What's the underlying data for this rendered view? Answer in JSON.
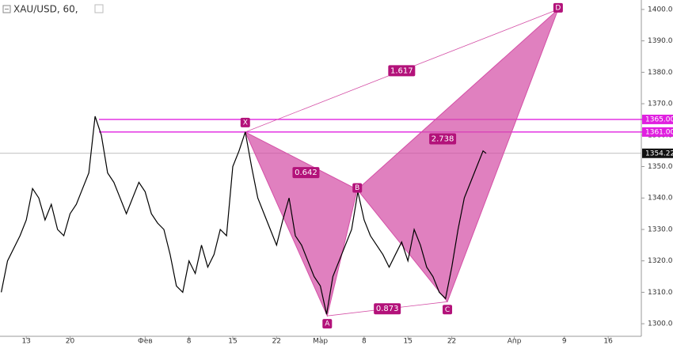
{
  "chart_data": {
    "type": "line",
    "title": "XAU/USD, 60,",
    "color": "#000000",
    "x": [
      9,
      10,
      12,
      13,
      14,
      15,
      16,
      17,
      18,
      19,
      20,
      21,
      22,
      23,
      24,
      25,
      26,
      27,
      28,
      29,
      30,
      31,
      32,
      33,
      34,
      35,
      36,
      37,
      38,
      39,
      40,
      41,
      42,
      43,
      44,
      45,
      46,
      47,
      48,
      49,
      50,
      51,
      52,
      53,
      54,
      55,
      56,
      57,
      58,
      59,
      60,
      61,
      62,
      63,
      64,
      65,
      66,
      67,
      68,
      69,
      70,
      71,
      72,
      73,
      74,
      75,
      76,
      77,
      78,
      79,
      80,
      81,
      82,
      83,
      84,
      85,
      86,
      86.5
    ],
    "values": [
      1310,
      1320,
      1328,
      1333,
      1343,
      1340,
      1333,
      1338,
      1330,
      1328,
      1335,
      1338,
      1343,
      1348,
      1366,
      1360,
      1348,
      1345,
      1340,
      1335,
      1340,
      1345,
      1342,
      1335,
      1332,
      1330,
      1322,
      1312,
      1310,
      1320,
      1316,
      1325,
      1318,
      1322,
      1330,
      1328,
      1350,
      1355,
      1361,
      1350,
      1340,
      1335,
      1330,
      1325,
      1333,
      1340,
      1328,
      1325,
      1320,
      1315,
      1312,
      1303,
      1315,
      1320,
      1325,
      1330,
      1342,
      1333,
      1328,
      1325,
      1322,
      1318,
      1322,
      1326,
      1320,
      1330,
      1325,
      1318,
      1315,
      1310,
      1308,
      1318,
      1330,
      1340,
      1345,
      1350,
      1355,
      1354.22
    ],
    "xlim": [
      8.8,
      111.3
    ],
    "ylim": [
      1296,
      1403
    ],
    "xticks": [
      {
        "value": 13,
        "label": "13"
      },
      {
        "value": 20,
        "label": "20"
      },
      {
        "value": 32,
        "label": "Фев"
      },
      {
        "value": 39,
        "label": "8"
      },
      {
        "value": 46,
        "label": "15"
      },
      {
        "value": 53,
        "label": "22"
      },
      {
        "value": 60,
        "label": "Мар"
      },
      {
        "value": 67,
        "label": "8"
      },
      {
        "value": 74,
        "label": "15"
      },
      {
        "value": 81,
        "label": "22"
      },
      {
        "value": 91,
        "label": "Апр"
      },
      {
        "value": 99,
        "label": "9"
      },
      {
        "value": 106,
        "label": "16"
      }
    ],
    "yticks": [
      {
        "value": 1300,
        "label": "1300.00"
      },
      {
        "value": 1310,
        "label": "1310.00"
      },
      {
        "value": 1320,
        "label": "1320.00"
      },
      {
        "value": 1330,
        "label": "1330.00"
      },
      {
        "value": 1340,
        "label": "1340.00"
      },
      {
        "value": 1350,
        "label": "1350.00"
      },
      {
        "value": 1360,
        "label": "1360.00"
      },
      {
        "value": 1370,
        "label": "1370.00"
      },
      {
        "value": 1380,
        "label": "1380.00"
      },
      {
        "value": 1390,
        "label": "1390.00"
      },
      {
        "value": 1400,
        "label": "1400.00"
      }
    ],
    "levels": [
      {
        "value": 1365,
        "label": "1365.00"
      },
      {
        "value": 1361,
        "label": "1361.00"
      }
    ],
    "last_price": {
      "value": 1354.22,
      "label": "1354.22"
    },
    "pattern": {
      "color": "#d44fa6",
      "points": [
        {
          "label": "X",
          "x": 48,
          "y": 1361
        },
        {
          "label": "A",
          "x": 61.1,
          "y": 1302.5
        },
        {
          "label": "B",
          "x": 65.9,
          "y": 1342.7
        },
        {
          "label": "C",
          "x": 80.3,
          "y": 1307
        },
        {
          "label": "D",
          "x": 98,
          "y": 1400
        }
      ],
      "ratios": [
        0.642,
        1.617,
        2.738,
        0.873
      ]
    }
  }
}
